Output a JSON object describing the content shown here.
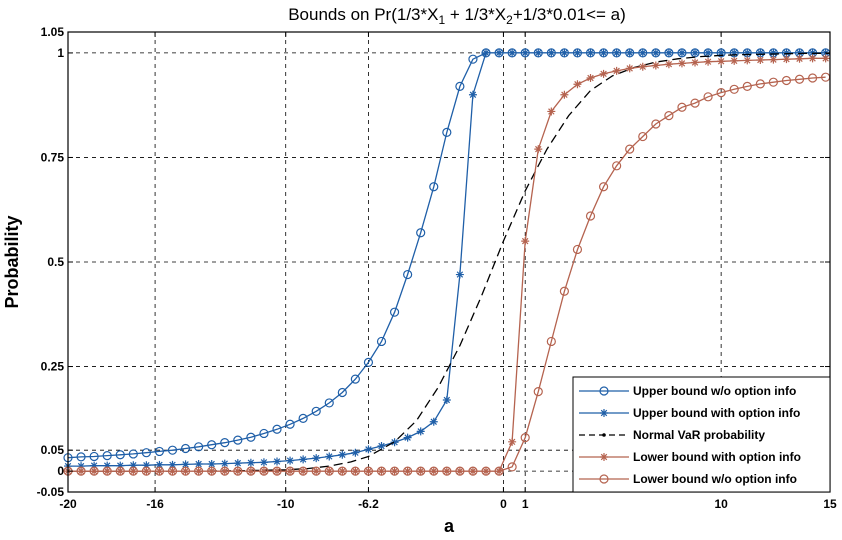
{
  "chart_data": {
    "type": "line",
    "title_parts": [
      {
        "text": "Bounds on Pr(1/3*X",
        "sub": false
      },
      {
        "text": "1",
        "sub": true
      },
      {
        "text": " + 1/3*X",
        "sub": false
      },
      {
        "text": "2",
        "sub": true
      },
      {
        "text": "+1/3*0.01<= a)",
        "sub": false
      }
    ],
    "xlabel": "a",
    "ylabel": "Probability",
    "xlim": [
      -20,
      15
    ],
    "ylim": [
      -0.05,
      1.05
    ],
    "xticks": [
      -20,
      -16,
      -10,
      -6.2,
      0,
      1,
      10,
      15
    ],
    "xtick_labels": [
      "-20",
      "-16",
      "-10",
      "-6.2",
      "0",
      "1",
      "10",
      "15"
    ],
    "yticks": [
      -0.05,
      0,
      0.05,
      0.25,
      0.5,
      0.75,
      1,
      1.05
    ],
    "ytick_labels": [
      "-0.05",
      "0",
      "0.05",
      "0.25",
      "0.5",
      "0.75",
      "1",
      "1.05"
    ],
    "grid": true,
    "legend_position": "bottom-right",
    "colors": {
      "blue": "#1f5fa8",
      "red": "#b5634f",
      "black": "#000000"
    },
    "series": [
      {
        "name": "Upper bound w/o option info",
        "color": "#1f5fa8",
        "marker": "circle",
        "line": "solid",
        "x": [
          -20,
          -19.4,
          -18.8,
          -18.2,
          -17.6,
          -17,
          -16.4,
          -15.8,
          -15.2,
          -14.6,
          -14,
          -13.4,
          -12.8,
          -12.2,
          -11.6,
          -11,
          -10.4,
          -9.8,
          -9.2,
          -8.6,
          -8,
          -7.4,
          -6.8,
          -6.2,
          -5.6,
          -5,
          -4.4,
          -3.8,
          -3.2,
          -2.6,
          -2,
          -1.4,
          -0.8,
          -0.2,
          0.4,
          1,
          1.6,
          2.2,
          2.8,
          3.4,
          4,
          4.6,
          5.2,
          5.8,
          6.4,
          7,
          7.6,
          8.2,
          8.8,
          9.4,
          10,
          10.6,
          11.2,
          11.8,
          12.4,
          13,
          13.6,
          14.2,
          14.8
        ],
        "y": [
          0.032,
          0.034,
          0.035,
          0.037,
          0.039,
          0.041,
          0.044,
          0.047,
          0.05,
          0.054,
          0.058,
          0.063,
          0.068,
          0.074,
          0.081,
          0.09,
          0.1,
          0.112,
          0.126,
          0.143,
          0.163,
          0.188,
          0.22,
          0.26,
          0.31,
          0.38,
          0.47,
          0.57,
          0.68,
          0.81,
          0.92,
          0.985,
          1.0,
          1.0,
          1.0,
          1.0,
          1.0,
          1.0,
          1.0,
          1.0,
          1.0,
          1.0,
          1.0,
          1.0,
          1.0,
          1.0,
          1.0,
          1.0,
          1.0,
          1.0,
          1.0,
          1.0,
          1.0,
          1.0,
          1.0,
          1.0,
          1.0,
          1.0,
          1.0
        ]
      },
      {
        "name": "Upper bound with option info",
        "color": "#1f5fa8",
        "marker": "star",
        "line": "solid",
        "x": [
          -20,
          -19.4,
          -18.8,
          -18.2,
          -17.6,
          -17,
          -16.4,
          -15.8,
          -15.2,
          -14.6,
          -14,
          -13.4,
          -12.8,
          -12.2,
          -11.6,
          -11,
          -10.4,
          -9.8,
          -9.2,
          -8.6,
          -8,
          -7.4,
          -6.8,
          -6.2,
          -5.6,
          -5,
          -4.4,
          -3.8,
          -3.2,
          -2.6,
          -2,
          -1.4,
          -0.8,
          -0.2,
          0.4,
          1,
          1.6,
          2.2,
          2.8,
          3.4,
          4,
          4.6,
          5.2,
          5.8,
          6.4,
          7,
          7.6,
          8.2,
          8.8,
          9.4,
          10,
          10.6,
          11.2,
          11.8,
          12.4,
          13,
          13.6,
          14.2,
          14.8
        ],
        "y": [
          0.012,
          0.012,
          0.013,
          0.013,
          0.013,
          0.014,
          0.014,
          0.015,
          0.015,
          0.016,
          0.017,
          0.017,
          0.018,
          0.019,
          0.02,
          0.021,
          0.023,
          0.025,
          0.028,
          0.031,
          0.035,
          0.039,
          0.044,
          0.052,
          0.06,
          0.069,
          0.08,
          0.095,
          0.118,
          0.17,
          0.47,
          0.9,
          1.0,
          1.0,
          1.0,
          1.0,
          1.0,
          1.0,
          1.0,
          1.0,
          1.0,
          1.0,
          1.0,
          1.0,
          1.0,
          1.0,
          1.0,
          1.0,
          1.0,
          1.0,
          1.0,
          1.0,
          1.0,
          1.0,
          1.0,
          1.0,
          1.0,
          1.0,
          1.0
        ]
      },
      {
        "name": "Normal VaR probability",
        "color": "#000000",
        "marker": "none",
        "line": "dashed",
        "x": [
          -20,
          -17,
          -14,
          -12,
          -10,
          -9,
          -8,
          -7,
          -6.2,
          -5,
          -4,
          -3,
          -2,
          -1,
          0,
          1,
          2,
          3,
          4,
          5,
          6,
          7,
          8,
          9,
          10,
          11,
          12,
          13,
          14,
          15
        ],
        "y": [
          0.0,
          0.0,
          0.0,
          0.001,
          0.003,
          0.006,
          0.012,
          0.022,
          0.035,
          0.07,
          0.12,
          0.2,
          0.3,
          0.42,
          0.55,
          0.67,
          0.77,
          0.85,
          0.91,
          0.945,
          0.965,
          0.978,
          0.986,
          0.991,
          0.994,
          0.996,
          0.997,
          0.998,
          0.999,
          0.999
        ]
      },
      {
        "name": "Lower bound with option info",
        "color": "#b5634f",
        "marker": "star",
        "line": "solid",
        "x": [
          -20,
          -19.4,
          -18.8,
          -18.2,
          -17.6,
          -17,
          -16.4,
          -15.8,
          -15.2,
          -14.6,
          -14,
          -13.4,
          -12.8,
          -12.2,
          -11.6,
          -11,
          -10.4,
          -9.8,
          -9.2,
          -8.6,
          -8,
          -7.4,
          -6.8,
          -6.2,
          -5.6,
          -5,
          -4.4,
          -3.8,
          -3.2,
          -2.6,
          -2,
          -1.4,
          -0.8,
          -0.2,
          0.4,
          1,
          1.6,
          2.2,
          2.8,
          3.4,
          4,
          4.6,
          5.2,
          5.8,
          6.4,
          7,
          7.6,
          8.2,
          8.8,
          9.4,
          10,
          10.6,
          11.2,
          11.8,
          12.4,
          13,
          13.6,
          14.2,
          14.8
        ],
        "y": [
          0,
          0,
          0,
          0,
          0,
          0,
          0,
          0,
          0,
          0,
          0,
          0,
          0,
          0,
          0,
          0,
          0,
          0,
          0,
          0,
          0,
          0,
          0,
          0,
          0,
          0,
          0,
          0,
          0,
          0,
          0,
          0,
          0,
          0,
          0.07,
          0.55,
          0.77,
          0.86,
          0.9,
          0.925,
          0.94,
          0.95,
          0.957,
          0.963,
          0.967,
          0.97,
          0.973,
          0.975,
          0.977,
          0.979,
          0.98,
          0.981,
          0.982,
          0.983,
          0.984,
          0.985,
          0.986,
          0.987,
          0.987
        ]
      },
      {
        "name": "Lower bound w/o option info",
        "color": "#b5634f",
        "marker": "circle",
        "line": "solid",
        "x": [
          -20,
          -19.4,
          -18.8,
          -18.2,
          -17.6,
          -17,
          -16.4,
          -15.8,
          -15.2,
          -14.6,
          -14,
          -13.4,
          -12.8,
          -12.2,
          -11.6,
          -11,
          -10.4,
          -9.8,
          -9.2,
          -8.6,
          -8,
          -7.4,
          -6.8,
          -6.2,
          -5.6,
          -5,
          -4.4,
          -3.8,
          -3.2,
          -2.6,
          -2,
          -1.4,
          -0.8,
          -0.2,
          0.4,
          1,
          1.6,
          2.2,
          2.8,
          3.4,
          4,
          4.6,
          5.2,
          5.8,
          6.4,
          7,
          7.6,
          8.2,
          8.8,
          9.4,
          10,
          10.6,
          11.2,
          11.8,
          12.4,
          13,
          13.6,
          14.2,
          14.8
        ],
        "y": [
          0,
          0,
          0,
          0,
          0,
          0,
          0,
          0,
          0,
          0,
          0,
          0,
          0,
          0,
          0,
          0,
          0,
          0,
          0,
          0,
          0,
          0,
          0,
          0,
          0,
          0,
          0,
          0,
          0,
          0,
          0,
          0,
          0,
          0,
          0.01,
          0.08,
          0.19,
          0.31,
          0.43,
          0.53,
          0.61,
          0.68,
          0.73,
          0.77,
          0.8,
          0.83,
          0.85,
          0.87,
          0.88,
          0.895,
          0.905,
          0.913,
          0.92,
          0.926,
          0.93,
          0.934,
          0.937,
          0.94,
          0.942
        ]
      }
    ]
  }
}
